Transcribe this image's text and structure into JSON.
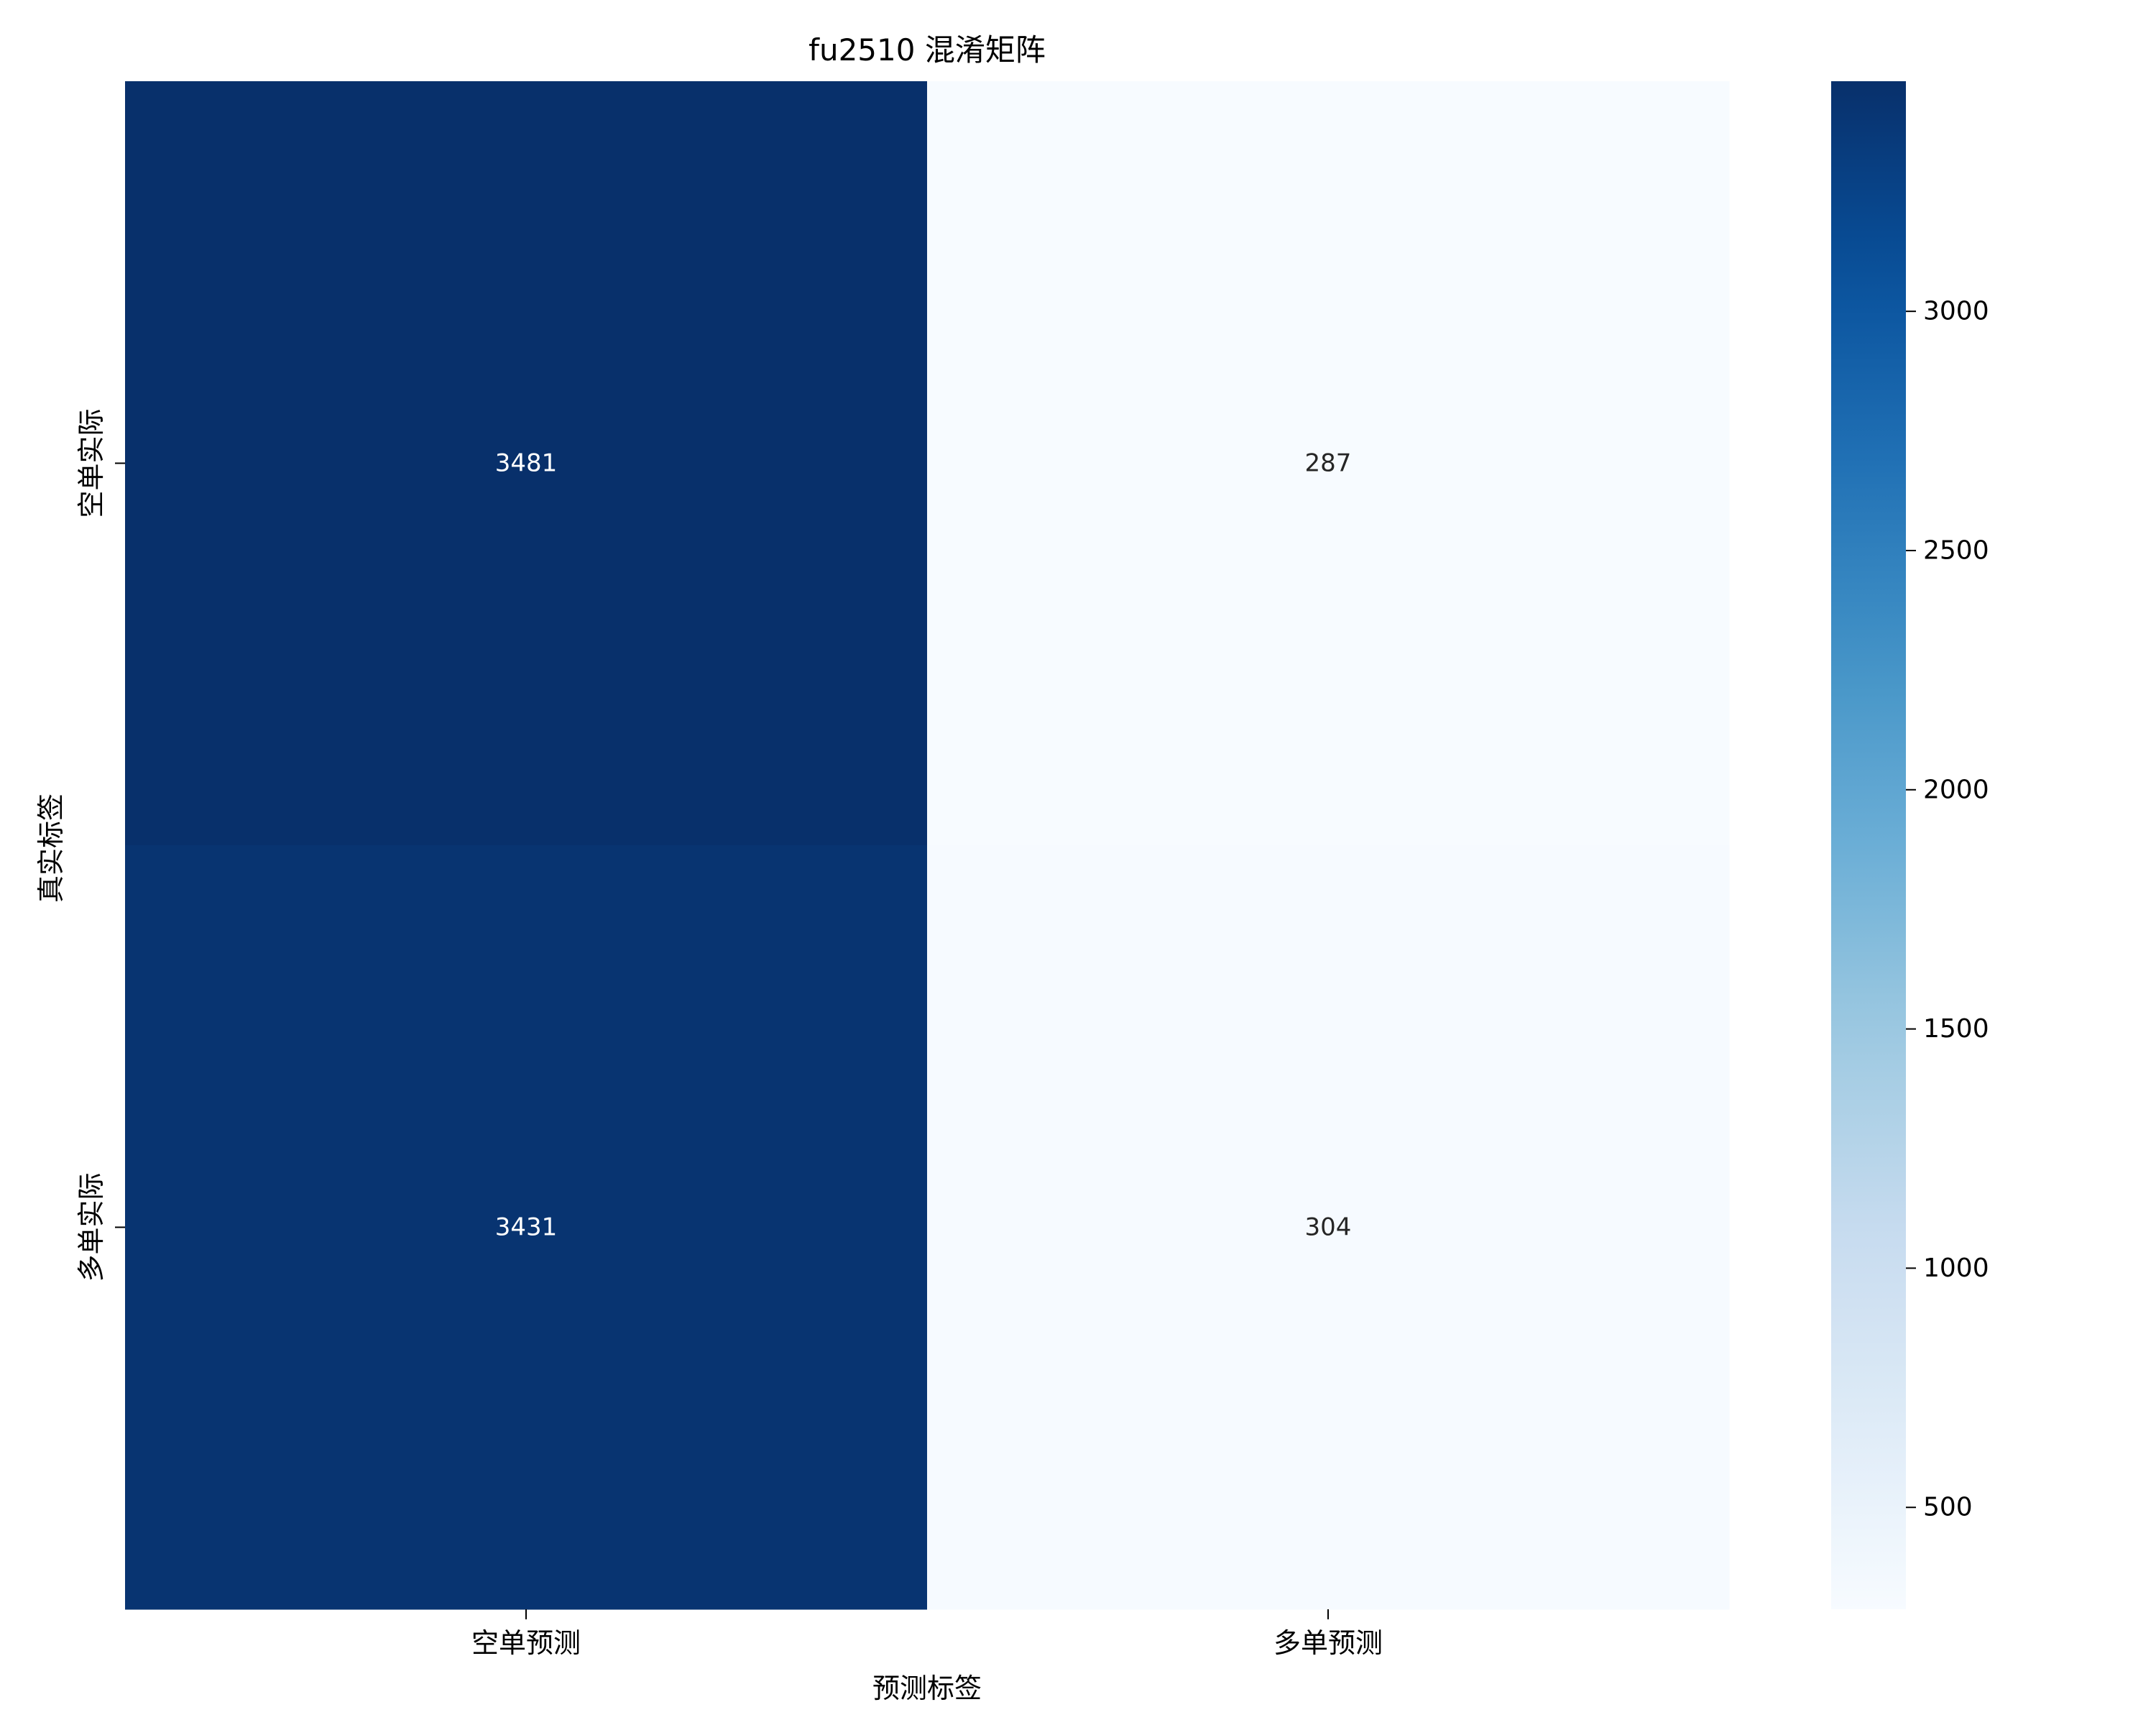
{
  "chart_data": {
    "type": "heatmap",
    "title": "fu2510 混淆矩阵",
    "xlabel": "预测标签",
    "ylabel": "真实标签",
    "x_categories": [
      "空单预测",
      "多单预测"
    ],
    "y_categories": [
      "空单实际",
      "多单实际"
    ],
    "values": [
      [
        3481,
        287
      ],
      [
        3431,
        304
      ]
    ],
    "colormap": "Blues",
    "color_range": [
      287,
      3481
    ],
    "colorbar_ticks": [
      500,
      1000,
      1500,
      2000,
      2500,
      3000
    ],
    "colorbar_tick_labels": [
      "500",
      "1000",
      "1500",
      "2000",
      "2500",
      "3000"
    ],
    "legend": "colorbar-right"
  }
}
